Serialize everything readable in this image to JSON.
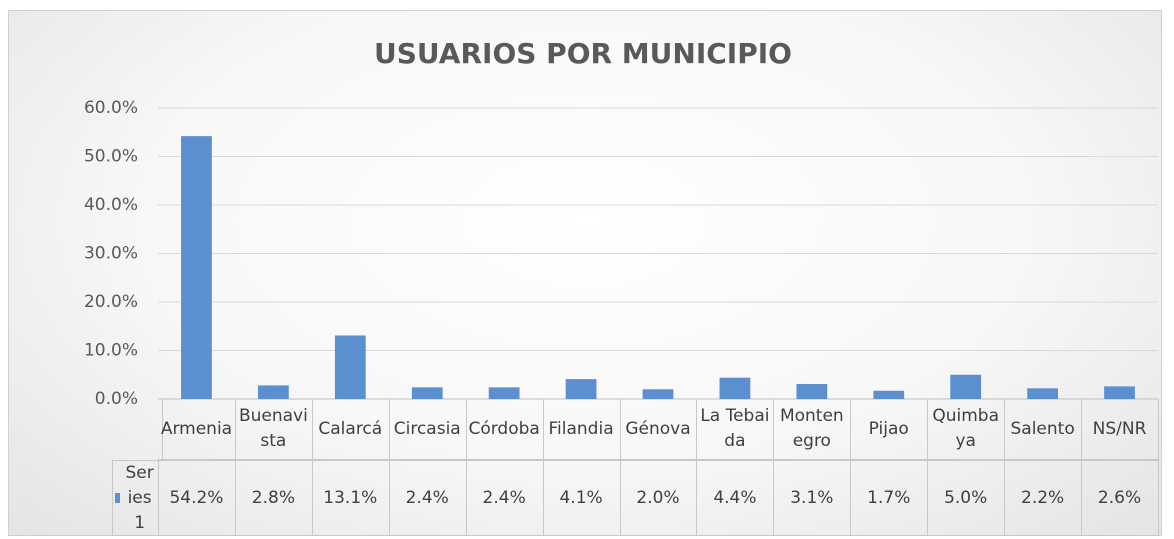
{
  "chart_data": {
    "type": "bar",
    "title": "USUARIOS POR MUNICIPIO",
    "categories": [
      "Armenia",
      "Buenavista",
      "Calarcá",
      "Circasia",
      "Córdoba",
      "Filandia",
      "Génova",
      "La Tebaida",
      "Montenegro",
      "Pijao",
      "Quimbaya",
      "Salento",
      "NS/NR"
    ],
    "series": [
      {
        "name": "Series1",
        "color": "#5b8fcf",
        "values": [
          54.2,
          2.8,
          13.1,
          2.4,
          2.4,
          4.1,
          2.0,
          4.4,
          3.1,
          1.7,
          5.0,
          2.2,
          2.6
        ],
        "value_labels": [
          "54.2%",
          "2.8%",
          "13.1%",
          "2.4%",
          "2.4%",
          "4.1%",
          "2.0%",
          "4.4%",
          "3.1%",
          "1.7%",
          "5.0%",
          "2.2%",
          "2.6%"
        ]
      }
    ],
    "ylim": [
      0,
      60
    ],
    "yticks": [
      {
        "value": 0,
        "label": "0.0%"
      },
      {
        "value": 10,
        "label": "10.0%"
      },
      {
        "value": 20,
        "label": "20.0%"
      },
      {
        "value": 30,
        "label": "30.0%"
      },
      {
        "value": 40,
        "label": "40.0%"
      },
      {
        "value": 50,
        "label": "50.0%"
      },
      {
        "value": 60,
        "label": "60.0%"
      }
    ],
    "grid": true
  }
}
